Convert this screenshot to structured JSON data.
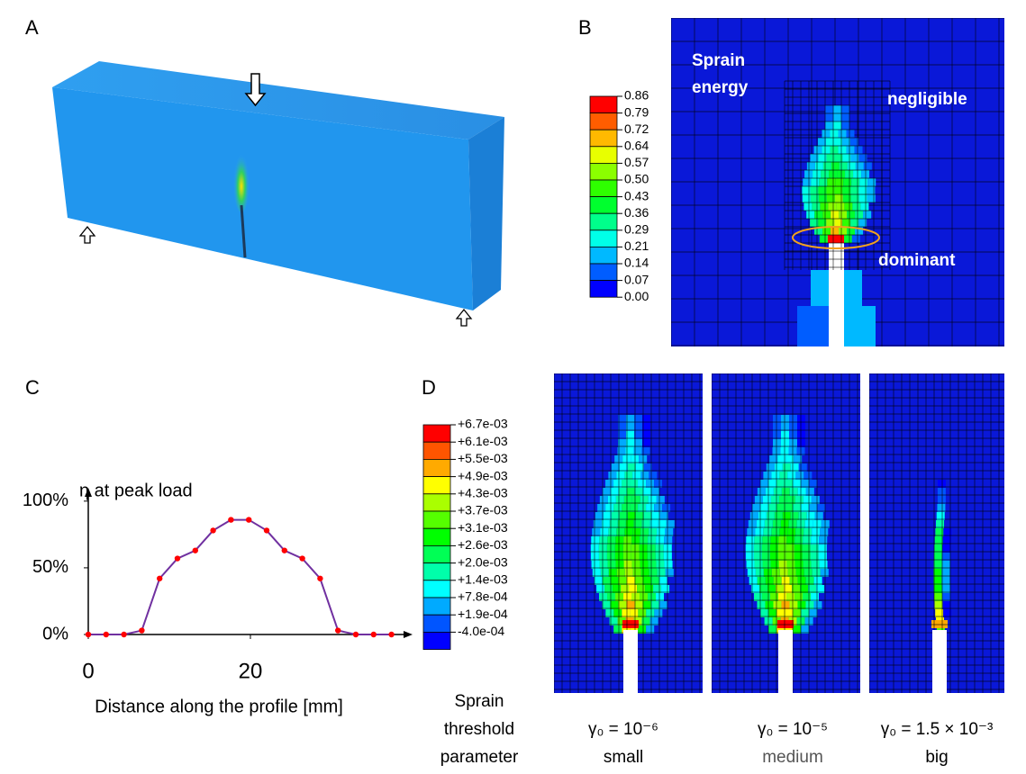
{
  "panels": {
    "a": {
      "label": "A"
    },
    "b": {
      "label": "B",
      "colorbar": {
        "labels": [
          "0.86",
          "0.79",
          "0.72",
          "0.64",
          "0.57",
          "0.50",
          "0.43",
          "0.36",
          "0.29",
          "0.21",
          "0.14",
          "0.07",
          "0.00"
        ],
        "colors": [
          "#ff0000",
          "#ff5d00",
          "#ffb900",
          "#e8ff00",
          "#8bff00",
          "#2eff00",
          "#00ff2e",
          "#00ff8b",
          "#00ffe8",
          "#00b9ff",
          "#005dff",
          "#0000ff"
        ]
      },
      "annotations": {
        "energy": [
          "Sprain",
          "energy"
        ],
        "negligible": "negligible",
        "dominant": "dominant"
      }
    },
    "c": {
      "label": "C"
    },
    "d": {
      "label": "D",
      "colorbar": {
        "labels": [
          "+6.7e-03",
          "+6.1e-03",
          "+5.5e-03",
          "+4.9e-03",
          "+4.3e-03",
          "+3.7e-03",
          "+3.1e-03",
          "+2.6e-03",
          "+2.0e-03",
          "+1.4e-03",
          "+7.8e-04",
          "+1.9e-04",
          "-4.0e-04"
        ],
        "colors": [
          "#ff0000",
          "#ff5500",
          "#ffaa00",
          "#ffff00",
          "#aaff00",
          "#55ff00",
          "#00ff00",
          "#00ff55",
          "#00ffaa",
          "#00ffff",
          "#00aaff",
          "#0055ff",
          "#0000ff"
        ]
      },
      "parameter_label": [
        "Sprain",
        "threshold",
        "parameter"
      ],
      "cases": [
        {
          "formula": "γ₀ = 10⁻⁶",
          "size": "small"
        },
        {
          "formula": "γ₀ = 10⁻⁵",
          "size": "medium"
        },
        {
          "formula": "γ₀ = 1.5 × 10⁻³",
          "size": "big"
        }
      ]
    }
  },
  "chart_data": {
    "type": "line",
    "y_label": "η at peak load",
    "x_label": "Distance along the profile [mm]",
    "x": [
      0,
      2.2,
      4.4,
      6.6,
      8.8,
      11,
      13.2,
      15.4,
      17.6,
      19.8,
      22,
      24.2,
      26.4,
      28.6,
      30.8,
      33,
      35.2,
      37.4
    ],
    "series": [
      {
        "color": "#7030a0",
        "marker_color": "#ff0000",
        "values": [
          0,
          0,
          0,
          3,
          42,
          57,
          63,
          78,
          86,
          86,
          78,
          63,
          57,
          42,
          3,
          0,
          0,
          0
        ]
      }
    ],
    "xlim": [
      0,
      40
    ],
    "ylim": [
      0,
      110
    ],
    "xticks": [
      0,
      20
    ],
    "yticks": [
      {
        "value": 0,
        "label": "0%"
      },
      {
        "value": 50,
        "label": "50%"
      },
      {
        "value": 100,
        "label": "100%"
      }
    ]
  }
}
